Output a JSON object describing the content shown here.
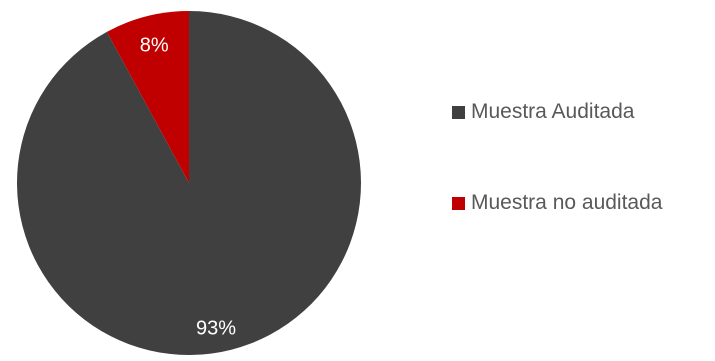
{
  "chart_data": {
    "type": "pie",
    "title": "",
    "categories": [
      "Muestra Auditada",
      "Muestra no auditada"
    ],
    "values": [
      93,
      8
    ],
    "labels": [
      "93%",
      "8%"
    ],
    "colors": [
      "#404040",
      "#c00000"
    ],
    "start_angle_deg": 0,
    "direction": "clockwise",
    "legend_position": "right"
  }
}
